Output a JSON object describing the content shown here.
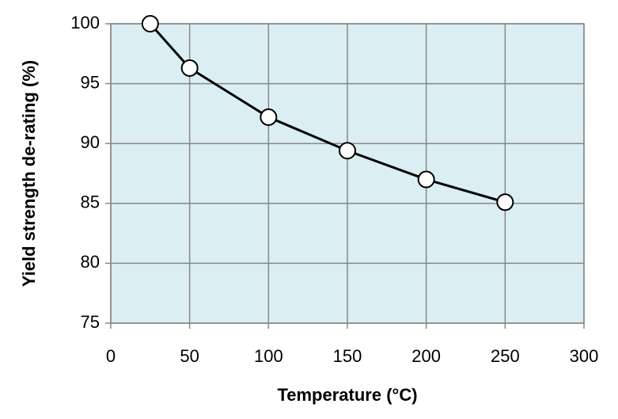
{
  "chart_data": {
    "type": "line",
    "x_label": "Temperature (°C)",
    "y_label": "Yield strength de-rating (%)",
    "x": [
      25,
      50,
      100,
      150,
      200,
      250
    ],
    "series": [
      {
        "name": "Yield strength de-rating",
        "color": "#000000",
        "values": [
          100,
          96.3,
          92.2,
          89.4,
          87.0,
          85.1
        ]
      }
    ],
    "xlim": [
      0,
      300
    ],
    "xticks": [
      0,
      50,
      100,
      150,
      200,
      250,
      300
    ],
    "ylim": [
      75,
      100
    ],
    "yticks": [
      75,
      80,
      85,
      90,
      95,
      100
    ],
    "grid": true,
    "background": "#daeef3"
  }
}
